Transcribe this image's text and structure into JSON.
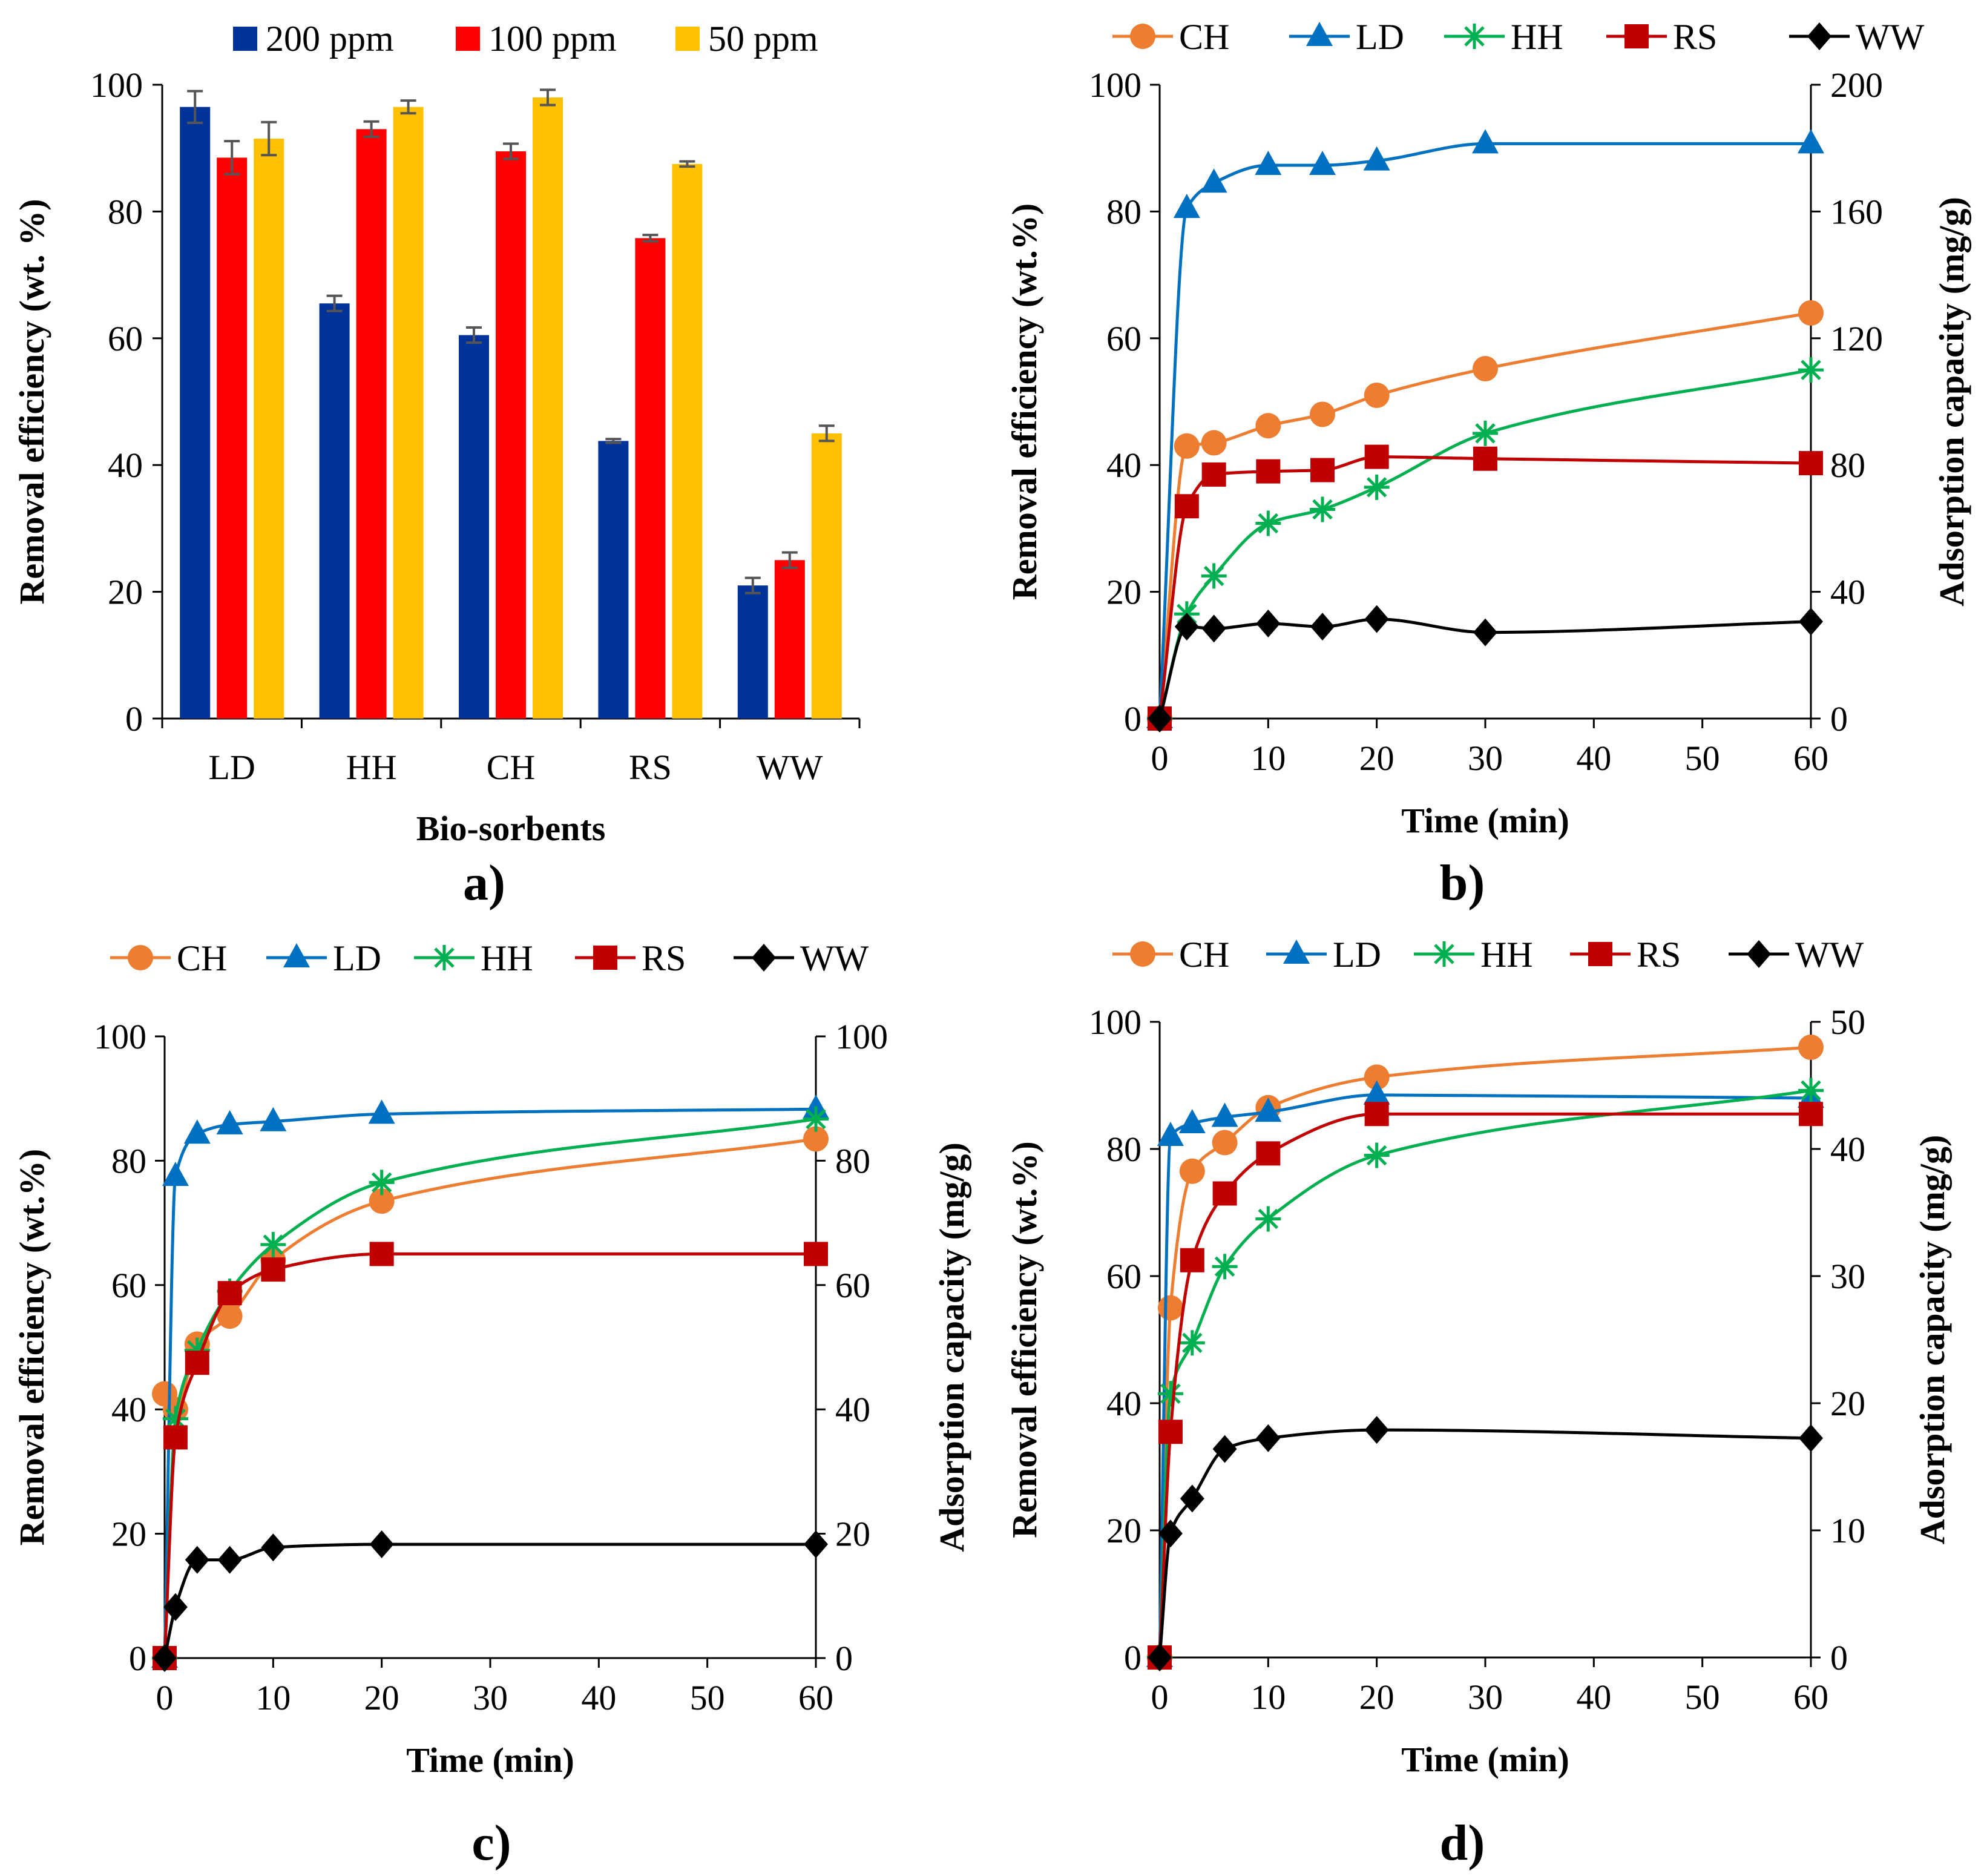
{
  "chart_data": [
    {
      "panel_label": "a)",
      "type": "bar",
      "categories": [
        "LD",
        "HH",
        "CH",
        "RS",
        "WW"
      ],
      "series": [
        {
          "name": "200 ppm",
          "color": "#003399",
          "values": [
            96.5,
            65.5,
            60.5,
            43.8,
            21.0
          ],
          "errors": [
            2.5,
            1.2,
            1.2,
            0.3,
            1.2
          ]
        },
        {
          "name": "100 ppm",
          "color": "#ff0000",
          "values": [
            88.5,
            93.0,
            89.5,
            75.8,
            25.0
          ],
          "errors": [
            2.6,
            1.2,
            1.2,
            0.5,
            1.2
          ]
        },
        {
          "name": "50 ppm",
          "color": "#ffc000",
          "values": [
            91.5,
            96.5,
            98.0,
            87.5,
            45.0
          ],
          "errors": [
            2.6,
            1.0,
            1.2,
            0.4,
            1.2
          ]
        }
      ],
      "xlabel": "Bio-sorbents",
      "ylabel": "Removal efficiency (wt. %)",
      "ylim": [
        0,
        100
      ],
      "yticks": [
        "0",
        "20",
        "40",
        "60",
        "80",
        "100"
      ]
    },
    {
      "panel_label": "b)",
      "type": "line",
      "xlabel": "Time (min)",
      "ylabel": "Removal efficiency (wt.%)",
      "y2label": "Adsorption capacity (mg/g)",
      "xlim": [
        0,
        60
      ],
      "ylim": [
        0,
        100
      ],
      "y2lim": [
        0,
        200
      ],
      "xticks": [
        "0",
        "10",
        "20",
        "30",
        "40",
        "50",
        "60"
      ],
      "yticks": [
        "0",
        "20",
        "40",
        "60",
        "80",
        "100"
      ],
      "y2ticks": [
        "0",
        "40",
        "80",
        "120",
        "160",
        "200"
      ],
      "series": [
        {
          "name": "CH",
          "color": "#ed7d31",
          "marker": "circle",
          "x": [
            0,
            2.5,
            5,
            10,
            15,
            20,
            30,
            60
          ],
          "y": [
            0,
            43,
            43.5,
            46.2,
            48,
            51,
            55.2,
            64
          ]
        },
        {
          "name": "LD",
          "color": "#0070c0",
          "marker": "triangle",
          "x": [
            0,
            2.5,
            5,
            10,
            15,
            20,
            30,
            60
          ],
          "y": [
            0,
            80.5,
            84.5,
            87.3,
            87.3,
            88,
            90.7,
            90.7
          ]
        },
        {
          "name": "HH",
          "color": "#00b050",
          "marker": "star",
          "x": [
            0,
            2.5,
            5,
            10,
            15,
            20,
            30,
            60
          ],
          "y": [
            0,
            16.5,
            22.5,
            30.8,
            33,
            36.5,
            45,
            55
          ]
        },
        {
          "name": "RS",
          "color": "#c00000",
          "marker": "square",
          "x": [
            0,
            2.5,
            5,
            10,
            15,
            20,
            30,
            60
          ],
          "y": [
            0,
            33.5,
            38.5,
            39,
            39.2,
            41.3,
            41,
            40.3
          ]
        },
        {
          "name": "WW",
          "color": "#000000",
          "marker": "diamond",
          "x": [
            0,
            2.5,
            5,
            10,
            15,
            20,
            30,
            60
          ],
          "y": [
            0,
            14.5,
            14.2,
            15,
            14.5,
            15.7,
            13.6,
            15.3
          ]
        }
      ]
    },
    {
      "panel_label": "c)",
      "type": "line",
      "xlabel": "Time (min)",
      "ylabel": "Removal efficiency (wt.%)",
      "y2label": "Adsorption capacity (mg/g)",
      "xlim": [
        0,
        60
      ],
      "ylim": [
        0,
        100
      ],
      "y2lim": [
        0,
        100
      ],
      "xticks": [
        "0",
        "10",
        "20",
        "30",
        "40",
        "50",
        "60"
      ],
      "yticks": [
        "0",
        "20",
        "40",
        "60",
        "80",
        "100"
      ],
      "y2ticks": [
        "0",
        "20",
        "40",
        "60",
        "80",
        "100"
      ],
      "series": [
        {
          "name": "CH",
          "color": "#ed7d31",
          "marker": "circle",
          "x": [
            0,
            1,
            3,
            6,
            10,
            20,
            60
          ],
          "y": [
            42.5,
            40,
            50.5,
            55,
            64,
            73.5,
            83.5
          ]
        },
        {
          "name": "LD",
          "color": "#0070c0",
          "marker": "triangle",
          "x": [
            0,
            1,
            3,
            6,
            10,
            20,
            60
          ],
          "y": [
            0,
            77.5,
            84.3,
            85.8,
            86.3,
            87.5,
            88.3
          ]
        },
        {
          "name": "HH",
          "color": "#00b050",
          "marker": "star",
          "x": [
            0,
            1,
            3,
            6,
            10,
            20,
            60
          ],
          "y": [
            0,
            38.5,
            49.5,
            59,
            66.5,
            76.5,
            86.7
          ]
        },
        {
          "name": "RS",
          "color": "#c00000",
          "marker": "square",
          "x": [
            0,
            1,
            3,
            6,
            10,
            20,
            60
          ],
          "y": [
            0,
            35.5,
            47.5,
            58.7,
            62.5,
            65,
            65
          ]
        },
        {
          "name": "WW",
          "color": "#000000",
          "marker": "diamond",
          "x": [
            0,
            1,
            3,
            6,
            10,
            20,
            60
          ],
          "y": [
            0,
            8.2,
            15.8,
            15.8,
            17.8,
            18.3,
            18.3
          ]
        }
      ]
    },
    {
      "panel_label": "d)",
      "type": "line",
      "xlabel": "Time (min)",
      "ylabel": "Removal efficiency (wt.%)",
      "y2label": "Adsorption capacity (mg/g)",
      "xlim": [
        0,
        60
      ],
      "ylim": [
        0,
        100
      ],
      "y2lim": [
        0,
        50
      ],
      "xticks": [
        "0",
        "10",
        "20",
        "30",
        "40",
        "50",
        "60"
      ],
      "yticks": [
        "0",
        "20",
        "40",
        "60",
        "80",
        "100"
      ],
      "y2ticks": [
        "0",
        "10",
        "20",
        "30",
        "40",
        "50"
      ],
      "series": [
        {
          "name": "CH",
          "color": "#ed7d31",
          "marker": "circle",
          "x": [
            0,
            1,
            3,
            6,
            10,
            20,
            60
          ],
          "y": [
            0,
            55,
            76.5,
            81,
            86.5,
            91.3,
            96
          ]
        },
        {
          "name": "LD",
          "color": "#0070c0",
          "marker": "triangle",
          "x": [
            0,
            1,
            3,
            6,
            10,
            20,
            60
          ],
          "y": [
            0,
            82,
            84,
            85,
            85.8,
            88.5,
            88
          ]
        },
        {
          "name": "HH",
          "color": "#00b050",
          "marker": "star",
          "x": [
            0,
            1,
            3,
            6,
            10,
            20,
            60
          ],
          "y": [
            0,
            41.5,
            49.5,
            61.5,
            69,
            79,
            89.2
          ]
        },
        {
          "name": "RS",
          "color": "#c00000",
          "marker": "square",
          "x": [
            0,
            1,
            3,
            6,
            10,
            20,
            60
          ],
          "y": [
            0,
            35.5,
            62.5,
            73,
            79.3,
            85.5,
            85.5
          ]
        },
        {
          "name": "WW",
          "color": "#000000",
          "marker": "diamond",
          "x": [
            0,
            1,
            3,
            6,
            10,
            20,
            60
          ],
          "y": [
            0,
            19.5,
            25,
            32.8,
            34.5,
            35.8,
            34.5
          ]
        }
      ]
    }
  ]
}
